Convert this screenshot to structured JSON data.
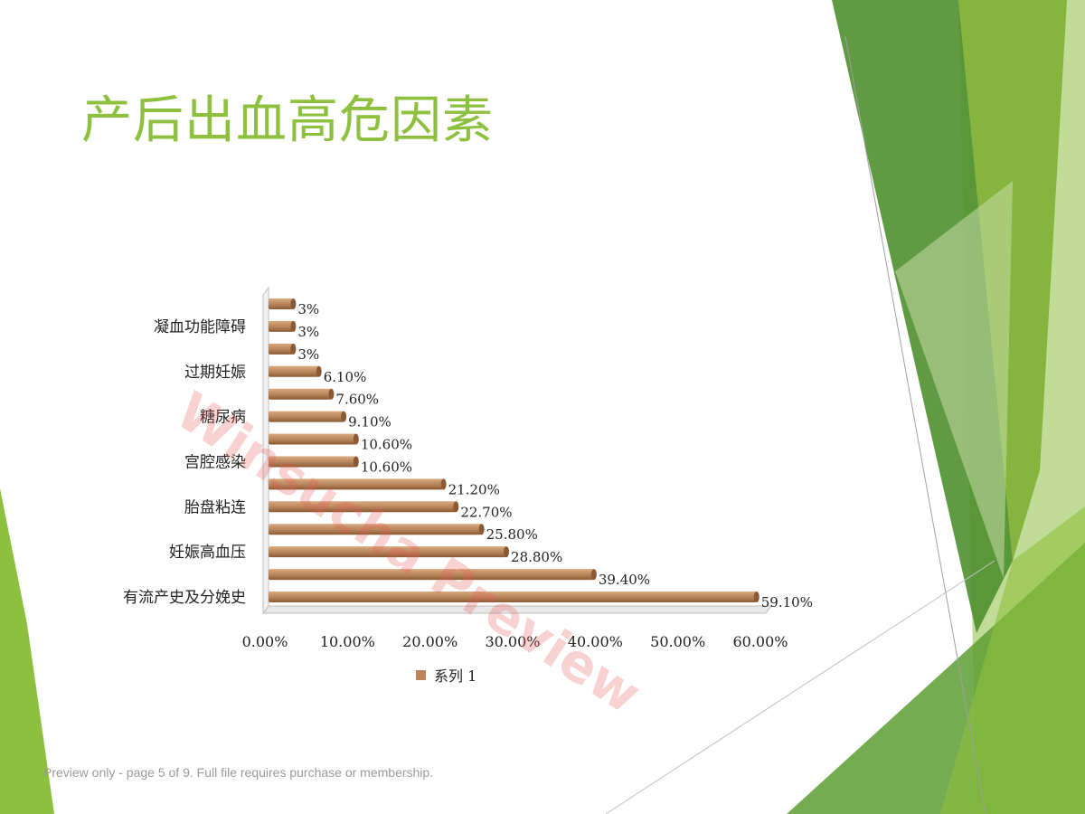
{
  "slide": {
    "title": "产后出血高危因素",
    "watermark": "Winsucha Preview",
    "footer": "Preview only - page 5 of 9. Full file requires purchase or membership."
  },
  "colors": {
    "title": "#8dc03f",
    "bar": "#b8845a",
    "bar_dark": "#8a5a34",
    "bar_light": "#d9a97e"
  },
  "chart_data": {
    "type": "bar",
    "orientation": "horizontal",
    "categories": [
      "有流产史及分娩史",
      "",
      "妊娠高血压",
      "",
      "胎盘粘连",
      "",
      "宫腔感染",
      "",
      "糖尿病",
      "",
      "过期妊娠",
      "",
      "凝血功能障碍",
      ""
    ],
    "series": [
      {
        "name": "系列 1",
        "values": [
          59.1,
          39.4,
          28.8,
          25.8,
          22.7,
          21.2,
          10.6,
          10.6,
          9.1,
          7.6,
          6.1,
          3,
          3,
          3
        ],
        "labels": [
          "59.10%",
          "39.40%",
          "28.80%",
          "25.80%",
          "22.70%",
          "21.20%",
          "10.60%",
          "10.60%",
          "9.10%",
          "7.60%",
          "6.10%",
          "3%",
          "3%",
          "3%"
        ]
      }
    ],
    "xlim": [
      0,
      60
    ],
    "xticks": [
      "0.00%",
      "10.00%",
      "20.00%",
      "30.00%",
      "40.00%",
      "50.00%",
      "60.00%"
    ],
    "legend": "bottom",
    "grid": false
  }
}
